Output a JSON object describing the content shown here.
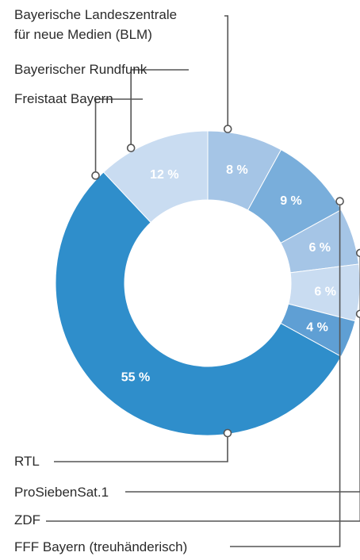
{
  "chart_data": {
    "type": "pie",
    "donut": true,
    "slices": [
      {
        "label": "Bayerische Landeszentrale für neue Medien (BLM)",
        "label_lines": [
          "Bayerische Landeszentrale",
          "für neue Medien (BLM)"
        ],
        "value": 8,
        "value_label": "8 %",
        "color": "#a5c5e6"
      },
      {
        "label": "FFF Bayern (treuhänderisch)",
        "label_lines": [
          "FFF Bayern (treuhänderisch)"
        ],
        "value": 9,
        "value_label": "9 %",
        "color": "#79aedb"
      },
      {
        "label": "ZDF",
        "label_lines": [
          "ZDF"
        ],
        "value": 6,
        "value_label": "6 %",
        "color": "#a5c5e6"
      },
      {
        "label": "ProSiebenSat.1",
        "label_lines": [
          "ProSiebenSat.1"
        ],
        "value": 6,
        "value_label": "6 %",
        "color": "#c9dcf1"
      },
      {
        "label": "RTL",
        "label_lines": [
          "RTL"
        ],
        "value": 4,
        "value_label": "4 %",
        "color": "#5f9fd4"
      },
      {
        "label": "Freistaat Bayern",
        "label_lines": [
          "Freistaat Bayern"
        ],
        "value": 55,
        "value_label": "55 %",
        "color": "#2f8ecb"
      },
      {
        "label": "Bayerischer Rundfunk",
        "label_lines": [
          "Bayerischer Rundfunk"
        ],
        "value": 12,
        "value_label": "12 %",
        "color": "#c9dcf1"
      }
    ]
  }
}
